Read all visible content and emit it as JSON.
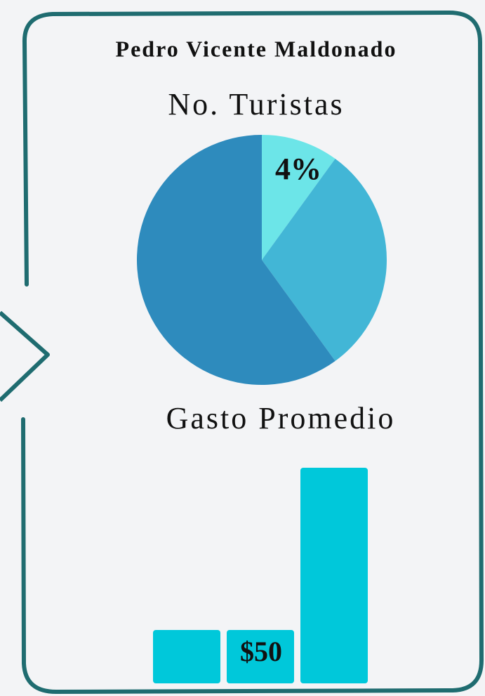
{
  "title": "Pedro Vicente Maldonado",
  "chart_data": [
    {
      "type": "pie",
      "title": "No. Turistas",
      "values": [
        10,
        30,
        60
      ],
      "colors": [
        "#6ce5e8",
        "#42b6d6",
        "#2e8bbd"
      ],
      "annotation": "4%"
    },
    {
      "type": "bar",
      "title": "Gasto Promedio",
      "values": [
        50,
        50,
        202
      ],
      "color": "#00c8da",
      "annotation": "$50"
    }
  ]
}
